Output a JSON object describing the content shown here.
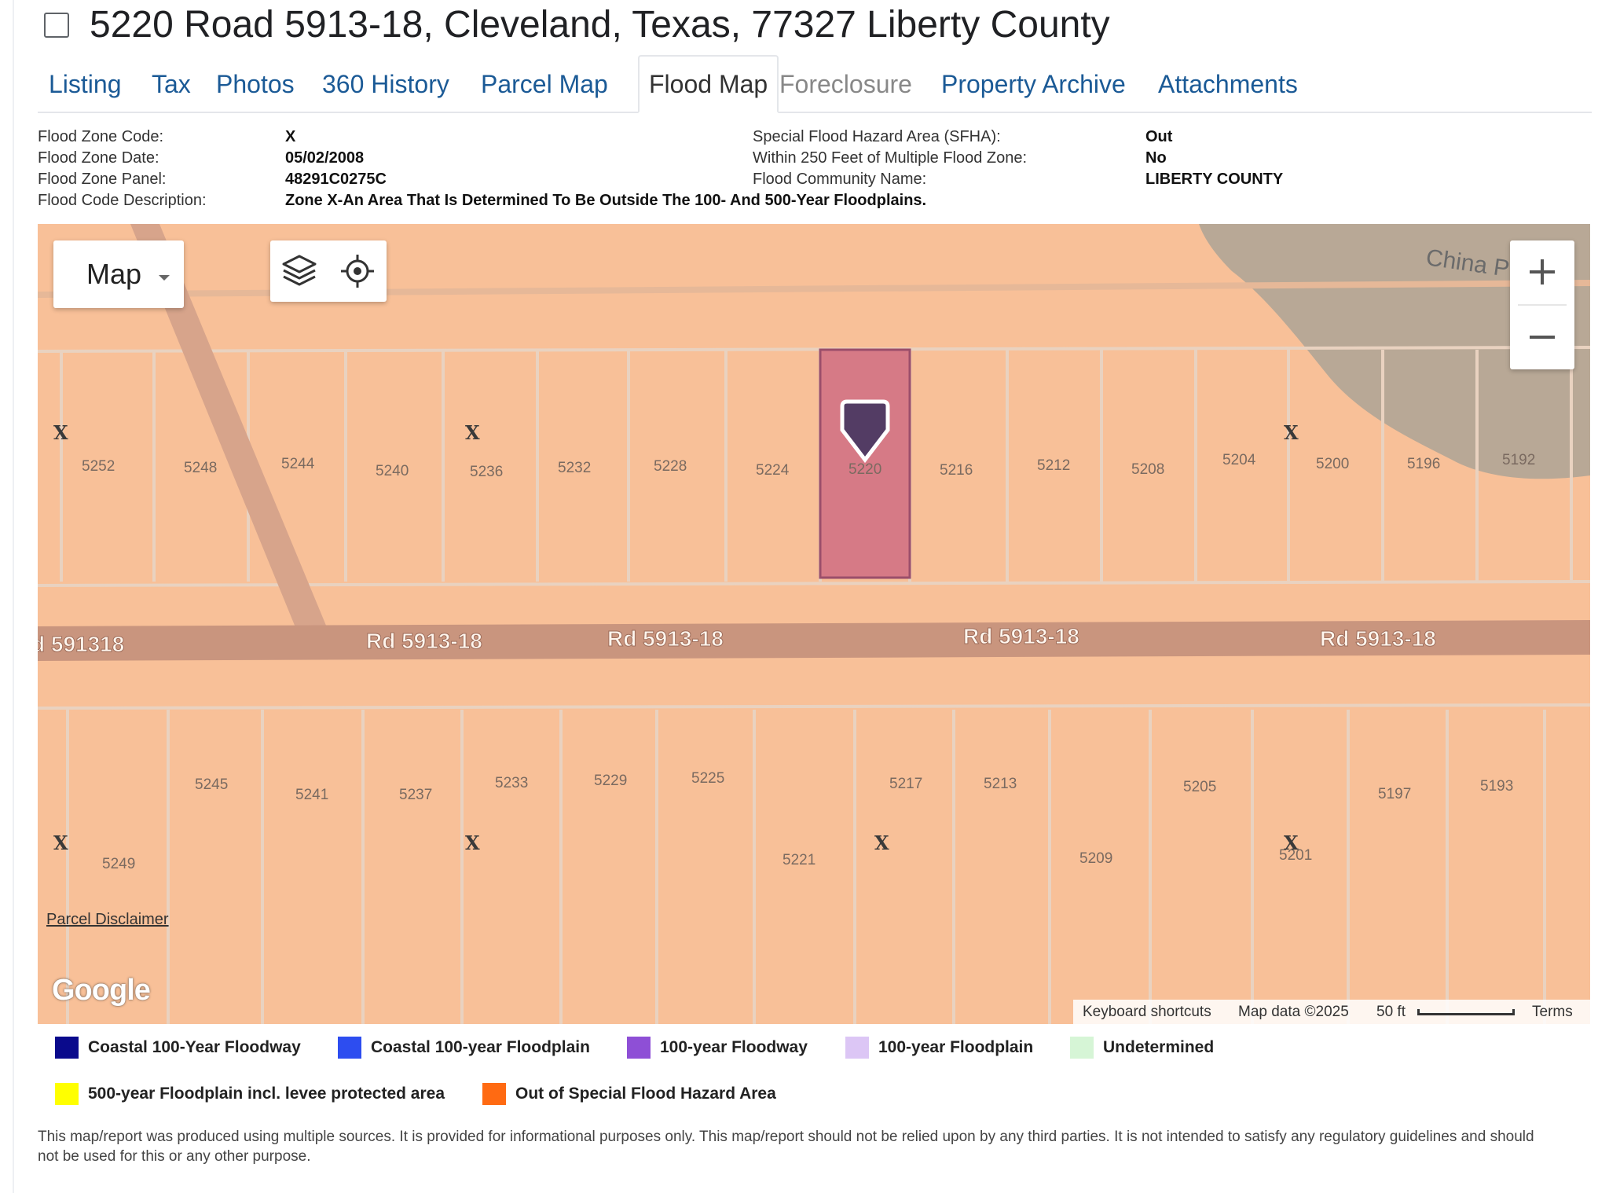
{
  "header": {
    "title": "5220 Road 5913-18, Cleveland, Texas, 77327 Liberty County"
  },
  "tabs": [
    {
      "label": "Listing"
    },
    {
      "label": "Tax"
    },
    {
      "label": "Photos"
    },
    {
      "label": "360 History"
    },
    {
      "label": "Parcel Map"
    },
    {
      "label": "Flood Map",
      "active": true
    },
    {
      "label": "Foreclosure"
    },
    {
      "label": "Property Archive"
    },
    {
      "label": "Attachments"
    }
  ],
  "flood_info": {
    "zone_code_label": "Flood Zone Code:",
    "zone_code": "X",
    "zone_date_label": "Flood Zone Date:",
    "zone_date": "05/02/2008",
    "zone_panel_label": "Flood Zone Panel:",
    "zone_panel": "48291C0275C",
    "code_desc_label": "Flood Code Description:",
    "code_desc": "Zone X-An Area That Is Determined To Be Outside The 100- And 500-Year Floodplains.",
    "sfha_label": "Special Flood Hazard Area (SFHA):",
    "sfha": "Out",
    "within250_label": "Within 250 Feet of Multiple Flood Zone:",
    "within250": "No",
    "community_label": "Flood Community Name:",
    "community": "LIBERTY COUNTY"
  },
  "map": {
    "type_label": "Map",
    "zoom_in": "+",
    "zoom_out": "—",
    "area_label": "China P",
    "road_labels": [
      "d 591318",
      "Rd 5913-18",
      "Rd 5913-18",
      "Rd 5913-18",
      "Rd 5913-18"
    ],
    "selected_parcel": "5220",
    "zone_marker": "X",
    "north_parcels": [
      "5252",
      "5248",
      "5244",
      "5240",
      "5236",
      "5232",
      "5228",
      "5224",
      "5220",
      "5216",
      "5212",
      "5208",
      "5204",
      "5200",
      "5196",
      "5192"
    ],
    "south_parcels": [
      "5249",
      "5245",
      "5241",
      "5237",
      "5233",
      "5229",
      "5225",
      "5221",
      "5217",
      "5213",
      "5209",
      "5205",
      "5201",
      "5197",
      "5193"
    ],
    "disclaimer_link": "Parcel Disclaimer",
    "google_logo": "Google",
    "attribution": {
      "shortcuts": "Keyboard shortcuts",
      "map_data": "Map data ©2025",
      "scale": "50 ft",
      "terms": "Terms"
    },
    "colors": {
      "zone_fill": "#f8c098",
      "road": "#c9957e",
      "forest": "#b8a896",
      "selected_parcel_fill": "#d67a86",
      "pin": "#533c64"
    }
  },
  "legend": [
    {
      "label": "Coastal 100-Year Floodway",
      "color": "#0a0a8c"
    },
    {
      "label": "Coastal 100-year Floodplain",
      "color": "#2d4df0"
    },
    {
      "label": "100-year Floodway",
      "color": "#8e4fd6"
    },
    {
      "label": "100-year Floodplain",
      "color": "#dcc6f5"
    },
    {
      "label": "Undetermined",
      "color": "#d6f5d6"
    },
    {
      "label": "500-year Floodplain incl. levee protected area",
      "color": "#ffff00"
    },
    {
      "label": "Out of Special Flood Hazard Area",
      "color": "#ff6a12"
    }
  ],
  "footnote": "This map/report was produced using multiple sources. It is provided for informational purposes only. This map/report should not be relied upon by any third parties. It is not intended to satisfy any regulatory guidelines and should not be used for this or any other purpose."
}
